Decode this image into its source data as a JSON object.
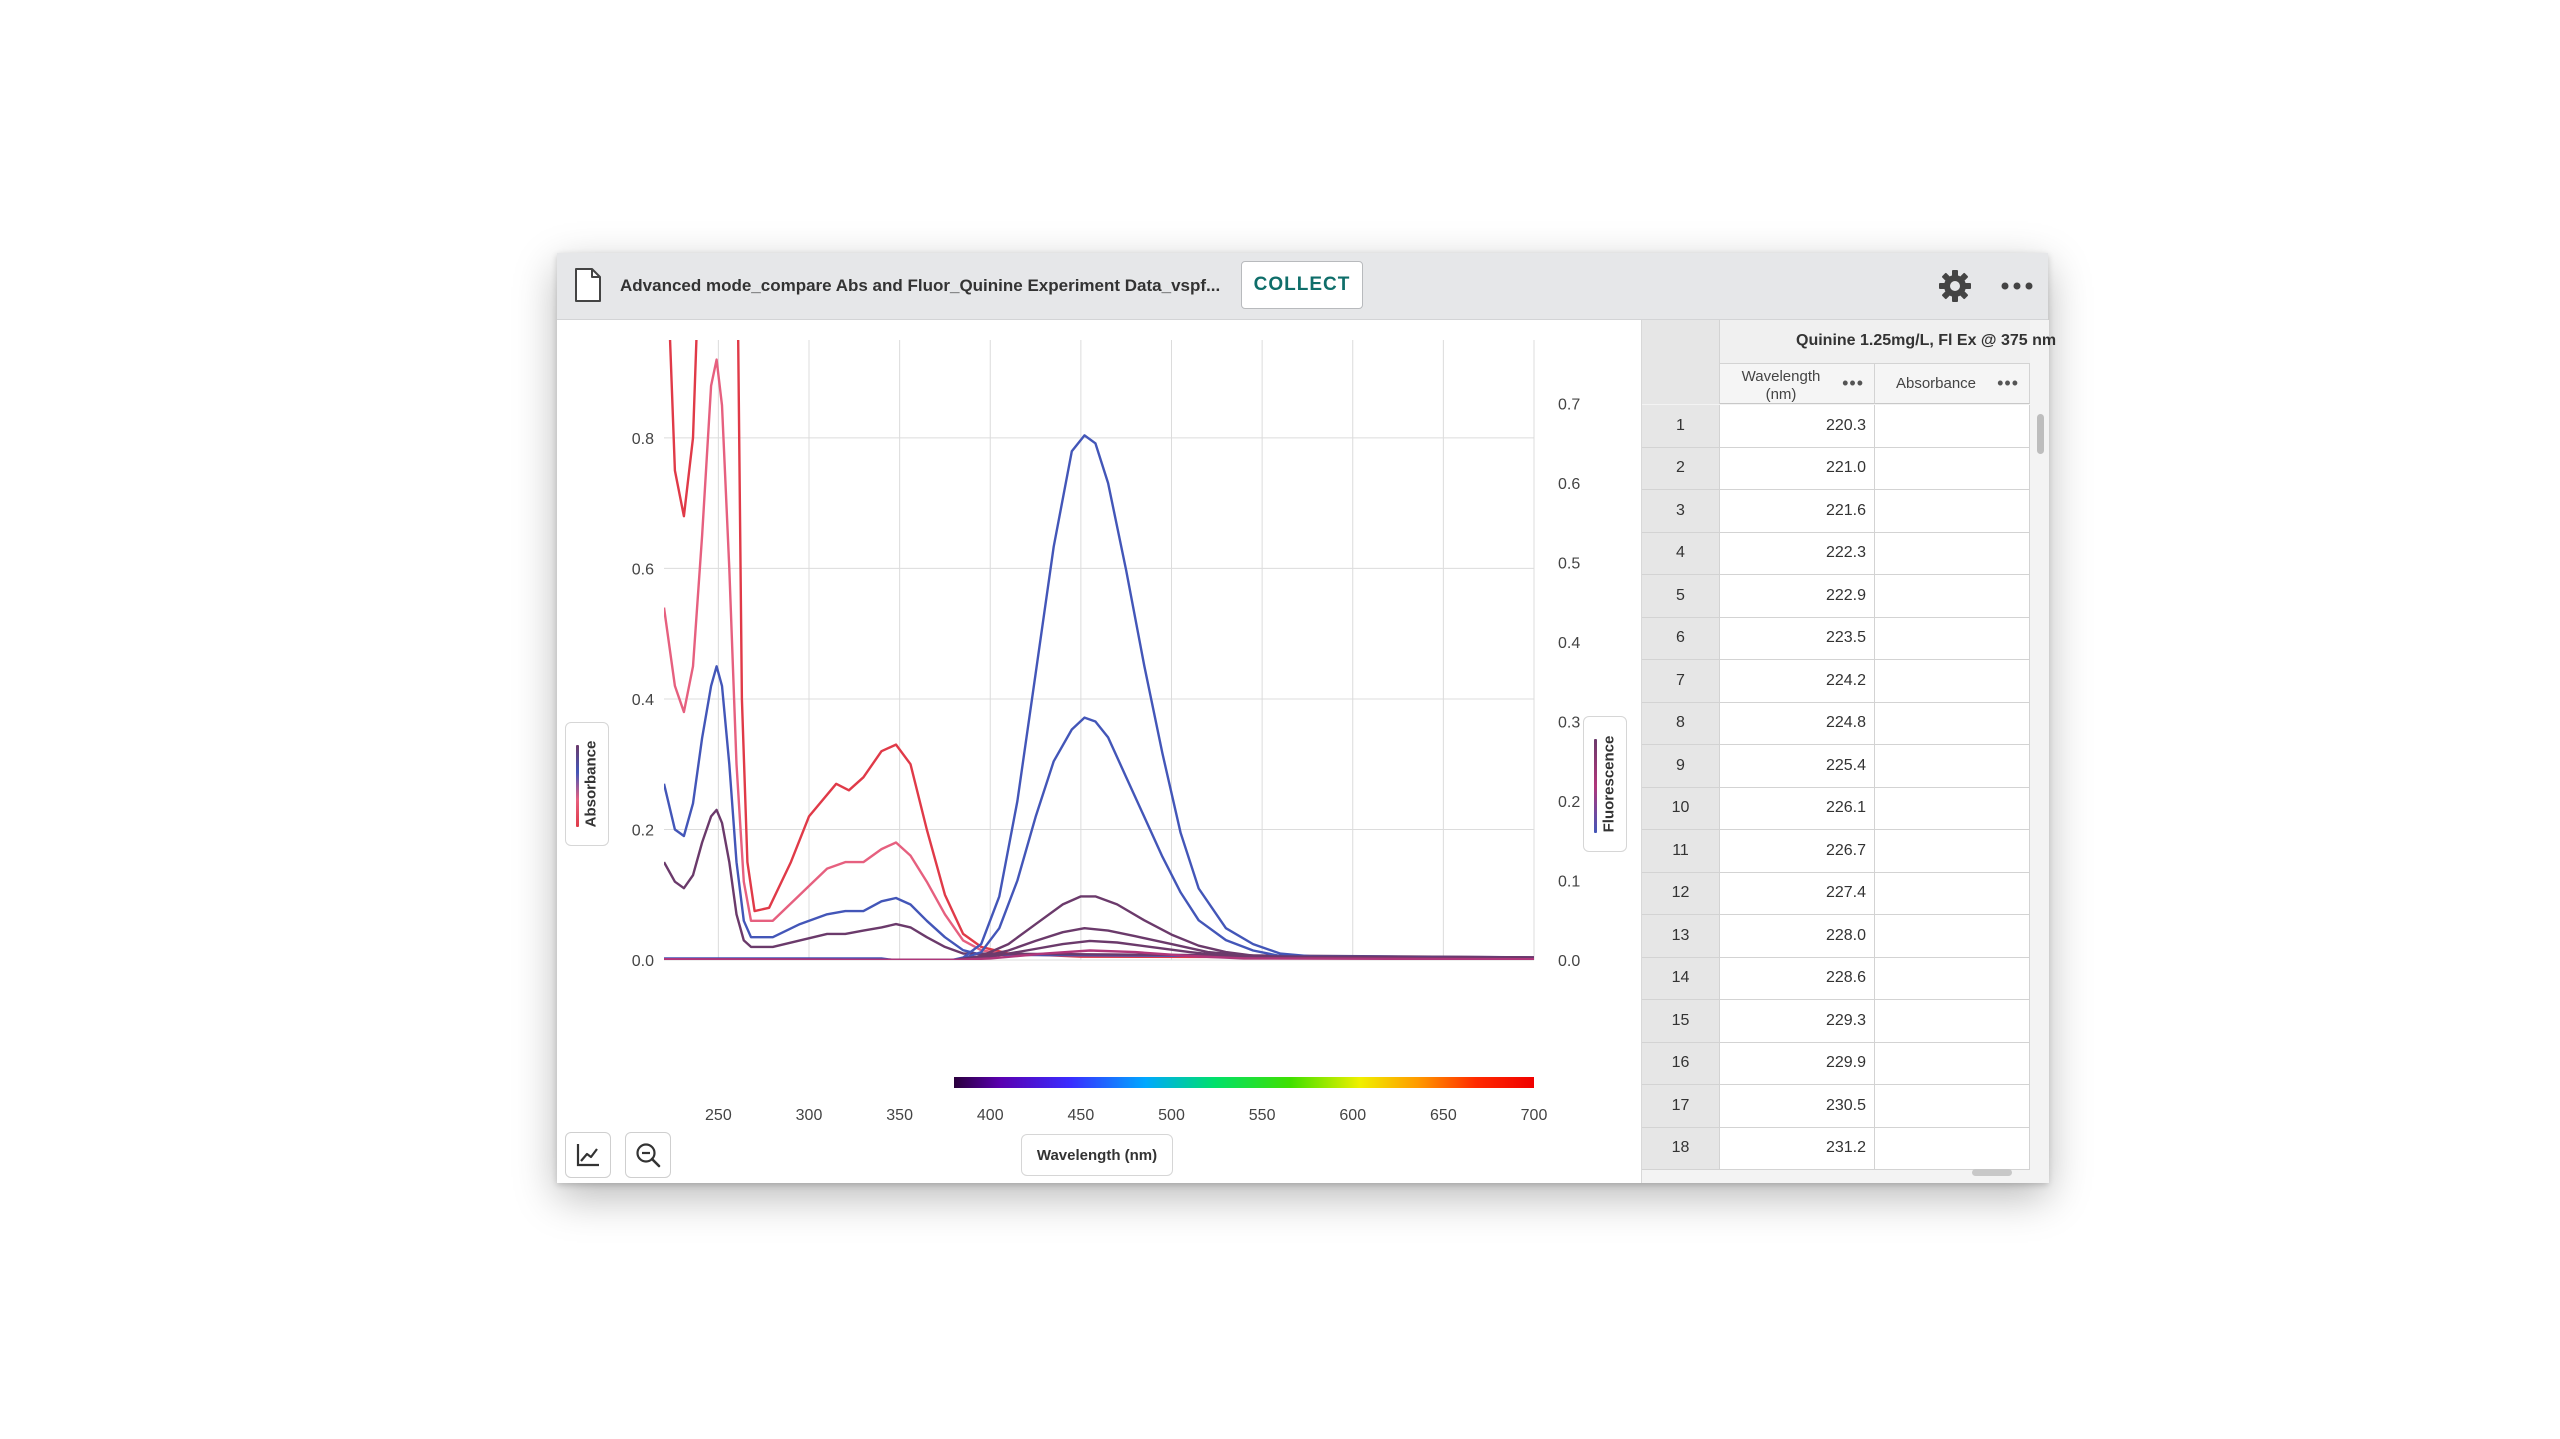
{
  "toolbar": {
    "file_title": "Advanced mode_compare Abs and Fluor_Quinine Experiment Data_vspf...",
    "collect_label": "COLLECT",
    "icons": [
      "file-icon",
      "gear-icon",
      "more-options-icon"
    ]
  },
  "graph": {
    "left_axis_label": "Absorbance",
    "right_axis_label": "Fluorescence",
    "x_axis_label": "Wavelength (nm)",
    "tools": [
      "graph-options-icon",
      "zoom-out-icon"
    ]
  },
  "chart_data": {
    "type": "line",
    "xlabel": "Wavelength (nm)",
    "ylabel": "Absorbance",
    "y2label": "Fluorescence",
    "xlim": [
      220,
      700
    ],
    "ylim": [
      0,
      0.95
    ],
    "y2lim": [
      0,
      0.78
    ],
    "x_ticks": [
      250,
      300,
      350,
      400,
      450,
      500,
      550,
      600,
      650,
      700
    ],
    "y_ticks": [
      0.0,
      0.2,
      0.4,
      0.6,
      0.8
    ],
    "y2_ticks": [
      0.0,
      0.1,
      0.2,
      0.3,
      0.4,
      0.5,
      0.6,
      0.7
    ],
    "grid": true,
    "spectrum_bar": {
      "from": 380,
      "to": 700
    },
    "absorbance_series": [
      {
        "color": "#e03a48",
        "points": [
          [
            220,
            1.2
          ],
          [
            226,
            0.75
          ],
          [
            231,
            0.68
          ],
          [
            236,
            0.8
          ],
          [
            241,
            1.2
          ],
          [
            250,
            1.2
          ],
          [
            260,
            1.2
          ],
          [
            263,
            0.4
          ],
          [
            266,
            0.15
          ],
          [
            270,
            0.075
          ],
          [
            278,
            0.08
          ],
          [
            290,
            0.15
          ],
          [
            300,
            0.22
          ],
          [
            315,
            0.27
          ],
          [
            322,
            0.26
          ],
          [
            330,
            0.28
          ],
          [
            340,
            0.32
          ],
          [
            348,
            0.33
          ],
          [
            356,
            0.3
          ],
          [
            365,
            0.2
          ],
          [
            375,
            0.1
          ],
          [
            385,
            0.04
          ],
          [
            395,
            0.02
          ],
          [
            410,
            0.01
          ],
          [
            450,
            0.005
          ],
          [
            700,
            0.004
          ]
        ]
      },
      {
        "color": "#e6607f",
        "points": [
          [
            220,
            0.54
          ],
          [
            226,
            0.42
          ],
          [
            231,
            0.38
          ],
          [
            236,
            0.45
          ],
          [
            241,
            0.65
          ],
          [
            246,
            0.88
          ],
          [
            249,
            0.92
          ],
          [
            252,
            0.85
          ],
          [
            256,
            0.6
          ],
          [
            260,
            0.3
          ],
          [
            264,
            0.12
          ],
          [
            268,
            0.06
          ],
          [
            280,
            0.06
          ],
          [
            295,
            0.1
          ],
          [
            310,
            0.14
          ],
          [
            320,
            0.15
          ],
          [
            330,
            0.15
          ],
          [
            340,
            0.17
          ],
          [
            348,
            0.18
          ],
          [
            356,
            0.16
          ],
          [
            365,
            0.12
          ],
          [
            375,
            0.07
          ],
          [
            385,
            0.03
          ],
          [
            395,
            0.015
          ],
          [
            410,
            0.008
          ],
          [
            700,
            0.004
          ]
        ]
      },
      {
        "color": "#4356b8",
        "points": [
          [
            220,
            0.27
          ],
          [
            226,
            0.2
          ],
          [
            231,
            0.19
          ],
          [
            236,
            0.24
          ],
          [
            241,
            0.34
          ],
          [
            246,
            0.42
          ],
          [
            249,
            0.45
          ],
          [
            252,
            0.42
          ],
          [
            256,
            0.3
          ],
          [
            260,
            0.15
          ],
          [
            264,
            0.06
          ],
          [
            268,
            0.035
          ],
          [
            280,
            0.035
          ],
          [
            295,
            0.055
          ],
          [
            310,
            0.07
          ],
          [
            320,
            0.075
          ],
          [
            330,
            0.075
          ],
          [
            340,
            0.09
          ],
          [
            348,
            0.095
          ],
          [
            356,
            0.085
          ],
          [
            365,
            0.06
          ],
          [
            375,
            0.035
          ],
          [
            385,
            0.015
          ],
          [
            395,
            0.008
          ],
          [
            700,
            0.004
          ]
        ]
      },
      {
        "color": "#6b3a6b",
        "points": [
          [
            220,
            0.15
          ],
          [
            226,
            0.12
          ],
          [
            231,
            0.11
          ],
          [
            236,
            0.13
          ],
          [
            241,
            0.18
          ],
          [
            246,
            0.22
          ],
          [
            249,
            0.23
          ],
          [
            252,
            0.21
          ],
          [
            256,
            0.15
          ],
          [
            260,
            0.07
          ],
          [
            264,
            0.03
          ],
          [
            268,
            0.02
          ],
          [
            280,
            0.02
          ],
          [
            295,
            0.03
          ],
          [
            310,
            0.04
          ],
          [
            320,
            0.04
          ],
          [
            330,
            0.045
          ],
          [
            340,
            0.05
          ],
          [
            348,
            0.055
          ],
          [
            356,
            0.05
          ],
          [
            365,
            0.035
          ],
          [
            375,
            0.02
          ],
          [
            385,
            0.01
          ],
          [
            700,
            0.004
          ]
        ]
      }
    ],
    "fluorescence_series": [
      {
        "color": "#4356b8",
        "points": [
          [
            220,
            0.002
          ],
          [
            340,
            0.002
          ],
          [
            360,
            -0.004
          ],
          [
            375,
            -0.002
          ],
          [
            385,
            0.003
          ],
          [
            395,
            0.02
          ],
          [
            405,
            0.08
          ],
          [
            415,
            0.2
          ],
          [
            425,
            0.36
          ],
          [
            435,
            0.52
          ],
          [
            445,
            0.64
          ],
          [
            452,
            0.66
          ],
          [
            458,
            0.65
          ],
          [
            465,
            0.6
          ],
          [
            475,
            0.49
          ],
          [
            485,
            0.37
          ],
          [
            495,
            0.26
          ],
          [
            505,
            0.16
          ],
          [
            515,
            0.09
          ],
          [
            530,
            0.04
          ],
          [
            545,
            0.02
          ],
          [
            560,
            0.008
          ],
          [
            580,
            0.004
          ],
          [
            700,
            0.002
          ]
        ]
      },
      {
        "color": "#4356b8",
        "points": [
          [
            220,
            0.001
          ],
          [
            340,
            0.001
          ],
          [
            360,
            -0.004
          ],
          [
            375,
            -0.002
          ],
          [
            385,
            0.002
          ],
          [
            395,
            0.01
          ],
          [
            405,
            0.04
          ],
          [
            415,
            0.1
          ],
          [
            425,
            0.18
          ],
          [
            435,
            0.25
          ],
          [
            445,
            0.29
          ],
          [
            452,
            0.305
          ],
          [
            458,
            0.3
          ],
          [
            465,
            0.28
          ],
          [
            475,
            0.23
          ],
          [
            485,
            0.18
          ],
          [
            495,
            0.13
          ],
          [
            505,
            0.085
          ],
          [
            515,
            0.05
          ],
          [
            530,
            0.025
          ],
          [
            545,
            0.012
          ],
          [
            560,
            0.005
          ],
          [
            700,
            0.002
          ]
        ]
      },
      {
        "color": "#6b3a6b",
        "points": [
          [
            220,
            0.001
          ],
          [
            360,
            -0.003
          ],
          [
            380,
            0.0
          ],
          [
            395,
            0.005
          ],
          [
            410,
            0.02
          ],
          [
            425,
            0.045
          ],
          [
            440,
            0.07
          ],
          [
            450,
            0.08
          ],
          [
            458,
            0.08
          ],
          [
            470,
            0.07
          ],
          [
            485,
            0.05
          ],
          [
            500,
            0.032
          ],
          [
            515,
            0.018
          ],
          [
            530,
            0.01
          ],
          [
            550,
            0.004
          ],
          [
            700,
            0.002
          ]
        ]
      },
      {
        "color": "#6b3a6b",
        "points": [
          [
            220,
            0.001
          ],
          [
            380,
            0.0
          ],
          [
            395,
            0.004
          ],
          [
            410,
            0.012
          ],
          [
            425,
            0.024
          ],
          [
            440,
            0.035
          ],
          [
            452,
            0.04
          ],
          [
            465,
            0.037
          ],
          [
            480,
            0.03
          ],
          [
            500,
            0.02
          ],
          [
            520,
            0.01
          ],
          [
            550,
            0.004
          ],
          [
            700,
            0.002
          ]
        ]
      },
      {
        "color": "#6b3a6b",
        "points": [
          [
            220,
            0.001
          ],
          [
            380,
            0.0
          ],
          [
            400,
            0.004
          ],
          [
            420,
            0.012
          ],
          [
            440,
            0.02
          ],
          [
            455,
            0.024
          ],
          [
            470,
            0.022
          ],
          [
            490,
            0.016
          ],
          [
            510,
            0.01
          ],
          [
            530,
            0.005
          ],
          [
            700,
            0.002
          ]
        ]
      },
      {
        "color": "#b0367a",
        "points": [
          [
            220,
            0.001
          ],
          [
            380,
            0.0
          ],
          [
            400,
            0.002
          ],
          [
            430,
            0.008
          ],
          [
            455,
            0.012
          ],
          [
            480,
            0.01
          ],
          [
            510,
            0.005
          ],
          [
            540,
            0.002
          ],
          [
            700,
            0.001
          ]
        ]
      }
    ]
  },
  "table": {
    "dataset_title": "Quinine 1.25mg/L, Fl Ex @ 375 nm",
    "columns": [
      {
        "label": "Wavelength\n(nm)",
        "menu": "•••"
      },
      {
        "label": "Absorbance",
        "menu": "•••"
      }
    ],
    "rows": [
      {
        "n": "1",
        "wavelength": "220.3",
        "absorbance": ""
      },
      {
        "n": "2",
        "wavelength": "221.0",
        "absorbance": ""
      },
      {
        "n": "3",
        "wavelength": "221.6",
        "absorbance": ""
      },
      {
        "n": "4",
        "wavelength": "222.3",
        "absorbance": ""
      },
      {
        "n": "5",
        "wavelength": "222.9",
        "absorbance": ""
      },
      {
        "n": "6",
        "wavelength": "223.5",
        "absorbance": ""
      },
      {
        "n": "7",
        "wavelength": "224.2",
        "absorbance": ""
      },
      {
        "n": "8",
        "wavelength": "224.8",
        "absorbance": ""
      },
      {
        "n": "9",
        "wavelength": "225.4",
        "absorbance": ""
      },
      {
        "n": "10",
        "wavelength": "226.1",
        "absorbance": ""
      },
      {
        "n": "11",
        "wavelength": "226.7",
        "absorbance": ""
      },
      {
        "n": "12",
        "wavelength": "227.4",
        "absorbance": ""
      },
      {
        "n": "13",
        "wavelength": "228.0",
        "absorbance": ""
      },
      {
        "n": "14",
        "wavelength": "228.6",
        "absorbance": ""
      },
      {
        "n": "15",
        "wavelength": "229.3",
        "absorbance": ""
      },
      {
        "n": "16",
        "wavelength": "229.9",
        "absorbance": ""
      },
      {
        "n": "17",
        "wavelength": "230.5",
        "absorbance": ""
      },
      {
        "n": "18",
        "wavelength": "231.2",
        "absorbance": ""
      }
    ]
  }
}
